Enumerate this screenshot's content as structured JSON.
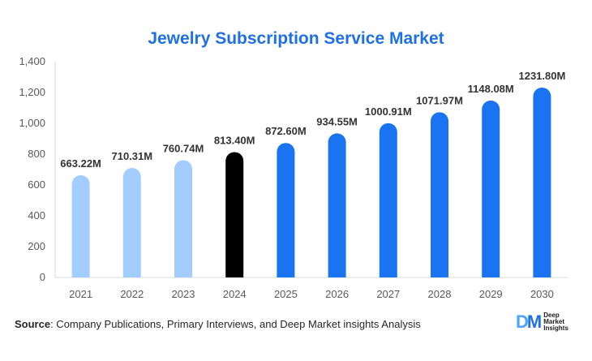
{
  "title": "Jewelry Subscription Service Market",
  "source": {
    "label": "Source",
    "text": ": Company Publications, Primary Interviews, and Deep Market insights Analysis"
  },
  "logo": {
    "mark_left": "D",
    "mark_right": "M",
    "line1": "Deep",
    "line2": "Market",
    "line3": "Insights"
  },
  "colors": {
    "historical": "#a4cdff",
    "base_year": "#000000",
    "forecast": "#1a73f0",
    "title": "#1f6fe5"
  },
  "chart_data": {
    "type": "bar",
    "title": "Jewelry Subscription Service Market",
    "xlabel": "",
    "ylabel": "",
    "ylim": [
      0,
      1400
    ],
    "yticks": [
      "0",
      "200",
      "400",
      "600",
      "800",
      "1,000",
      "1,200",
      "1,400"
    ],
    "categories": [
      "2021",
      "2022",
      "2023",
      "2024",
      "2025",
      "2026",
      "2027",
      "2028",
      "2029",
      "2030"
    ],
    "values": [
      663.22,
      710.31,
      760.74,
      813.4,
      872.6,
      934.55,
      1000.91,
      1071.97,
      1148.08,
      1231.8
    ],
    "data_labels": [
      "663.22M",
      "710.31M",
      "760.74M",
      "813.40M",
      "872.60M",
      "934.55M",
      "1000.91M",
      "1071.97M",
      "1148.08M",
      "1231.80M"
    ],
    "bar_colors": [
      "#a4cdff",
      "#a4cdff",
      "#a4cdff",
      "#000000",
      "#1a73f0",
      "#1a73f0",
      "#1a73f0",
      "#1a73f0",
      "#1a73f0",
      "#1a73f0"
    ],
    "grid": false
  }
}
